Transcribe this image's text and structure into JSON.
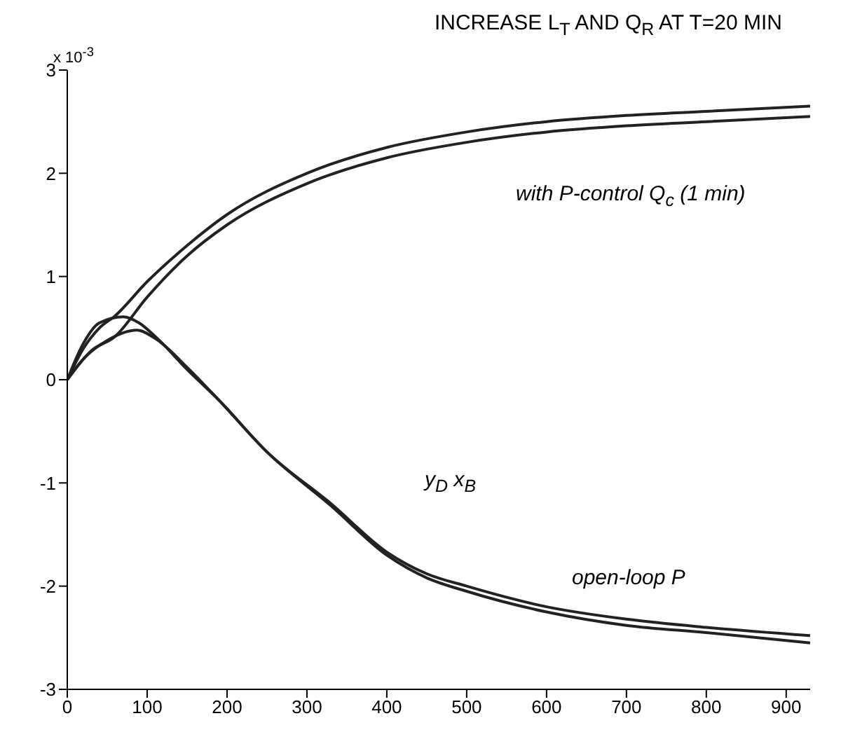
{
  "chart_data": {
    "type": "line",
    "title": "INCREASE L$_{T}$ AND Q$_{R}$ AT T=20 MIN",
    "xlim": [
      0,
      930
    ],
    "xticks": [
      0,
      100,
      200,
      300,
      400,
      500,
      600,
      700,
      800,
      900
    ],
    "ylim": [
      -3,
      3
    ],
    "yticks": [
      -3,
      -2,
      -1,
      0,
      1,
      2,
      3
    ],
    "grid": false,
    "legend": false,
    "marker": "none",
    "line_style": "solid",
    "series": [
      {
        "color": "#222222",
        "x": [
          0,
          20,
          40,
          60,
          100,
          150,
          200,
          300,
          400,
          500,
          600,
          700,
          800,
          930
        ],
        "values": [
          0,
          0.3,
          0.5,
          0.62,
          0.95,
          1.3,
          1.6,
          2.0,
          2.25,
          2.4,
          2.5,
          2.56,
          2.6,
          2.65
        ]
      },
      {
        "color": "#222222",
        "x": [
          0,
          30,
          60,
          100,
          150,
          200,
          300,
          400,
          500,
          600,
          700,
          800,
          930
        ],
        "values": [
          0,
          0.28,
          0.42,
          0.8,
          1.2,
          1.5,
          1.9,
          2.15,
          2.3,
          2.4,
          2.46,
          2.5,
          2.55
        ]
      },
      {
        "color": "#222222",
        "x": [
          0,
          20,
          40,
          70,
          90,
          110,
          150,
          190,
          250,
          330,
          400,
          450,
          500,
          600,
          700,
          800,
          930
        ],
        "values": [
          0,
          0.35,
          0.55,
          0.61,
          0.55,
          0.42,
          0.1,
          -0.2,
          -0.7,
          -1.22,
          -1.7,
          -1.92,
          -2.05,
          -2.25,
          -2.38,
          -2.45,
          -2.55
        ]
      },
      {
        "color": "#222222",
        "x": [
          0,
          20,
          50,
          87,
          110,
          150,
          190,
          250,
          330,
          400,
          450,
          500,
          600,
          700,
          800,
          930
        ],
        "values": [
          0,
          0.2,
          0.38,
          0.48,
          0.4,
          0.12,
          -0.2,
          -0.7,
          -1.2,
          -1.67,
          -1.88,
          -2.0,
          -2.2,
          -2.32,
          -2.4,
          -2.48
        ]
      }
    ],
    "annotations": [
      "x 10$^{-3}$",
      "with P-control Q$_{c}$ (1 min)",
      "y$_{D}$ x$_{B}$",
      "open-loop P"
    ]
  }
}
